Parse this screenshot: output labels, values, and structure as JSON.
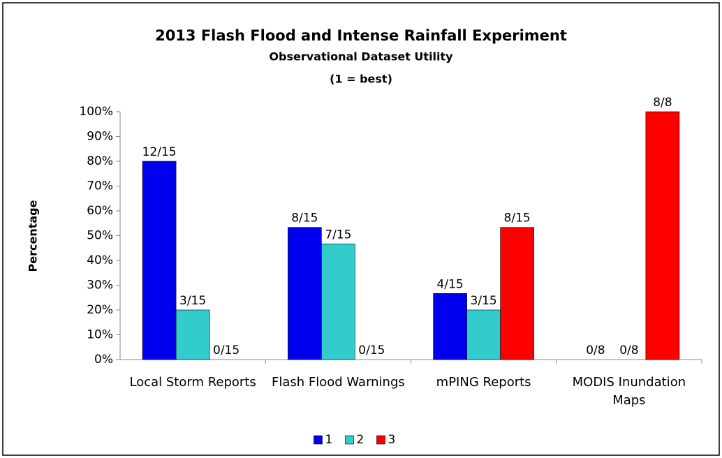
{
  "chart_data": {
    "type": "bar",
    "title": "2013 Flash Flood and Intense Rainfall Experiment",
    "subtitle": "Observational Dataset Utility",
    "note": "(1 = best)",
    "y_label": "Percentage",
    "categories": [
      "Local Storm Reports",
      "Flash Flood Warnings",
      "mPING Reports",
      "MODIS Inundation Maps"
    ],
    "series": [
      {
        "name": "1",
        "color": "#0000ee",
        "values": [
          80,
          53.33,
          26.67,
          0
        ],
        "value_labels": [
          "12/15",
          "8/15",
          "4/15",
          "0/8"
        ]
      },
      {
        "name": "2",
        "color": "#33cccc",
        "values": [
          20,
          46.67,
          20,
          0
        ],
        "value_labels": [
          "3/15",
          "7/15",
          "3/15",
          "0/8"
        ]
      },
      {
        "name": "3",
        "color": "#ff0000",
        "values": [
          0,
          0,
          53.33,
          100
        ],
        "value_labels": [
          "0/15",
          "0/15",
          "8/15",
          "8/8"
        ]
      }
    ],
    "ylim": [
      0,
      100
    ],
    "yticks": [
      {
        "value": 0,
        "label": "0%"
      },
      {
        "value": 10,
        "label": "10%"
      },
      {
        "value": 20,
        "label": "20%"
      },
      {
        "value": 30,
        "label": "30%"
      },
      {
        "value": 40,
        "label": "40%"
      },
      {
        "value": 50,
        "label": "50%"
      },
      {
        "value": 60,
        "label": "60%"
      },
      {
        "value": 70,
        "label": "70%"
      },
      {
        "value": 80,
        "label": "80%"
      },
      {
        "value": 90,
        "label": "90%"
      },
      {
        "value": 100,
        "label": "100%"
      }
    ],
    "grid": false,
    "legend": "bottom"
  }
}
